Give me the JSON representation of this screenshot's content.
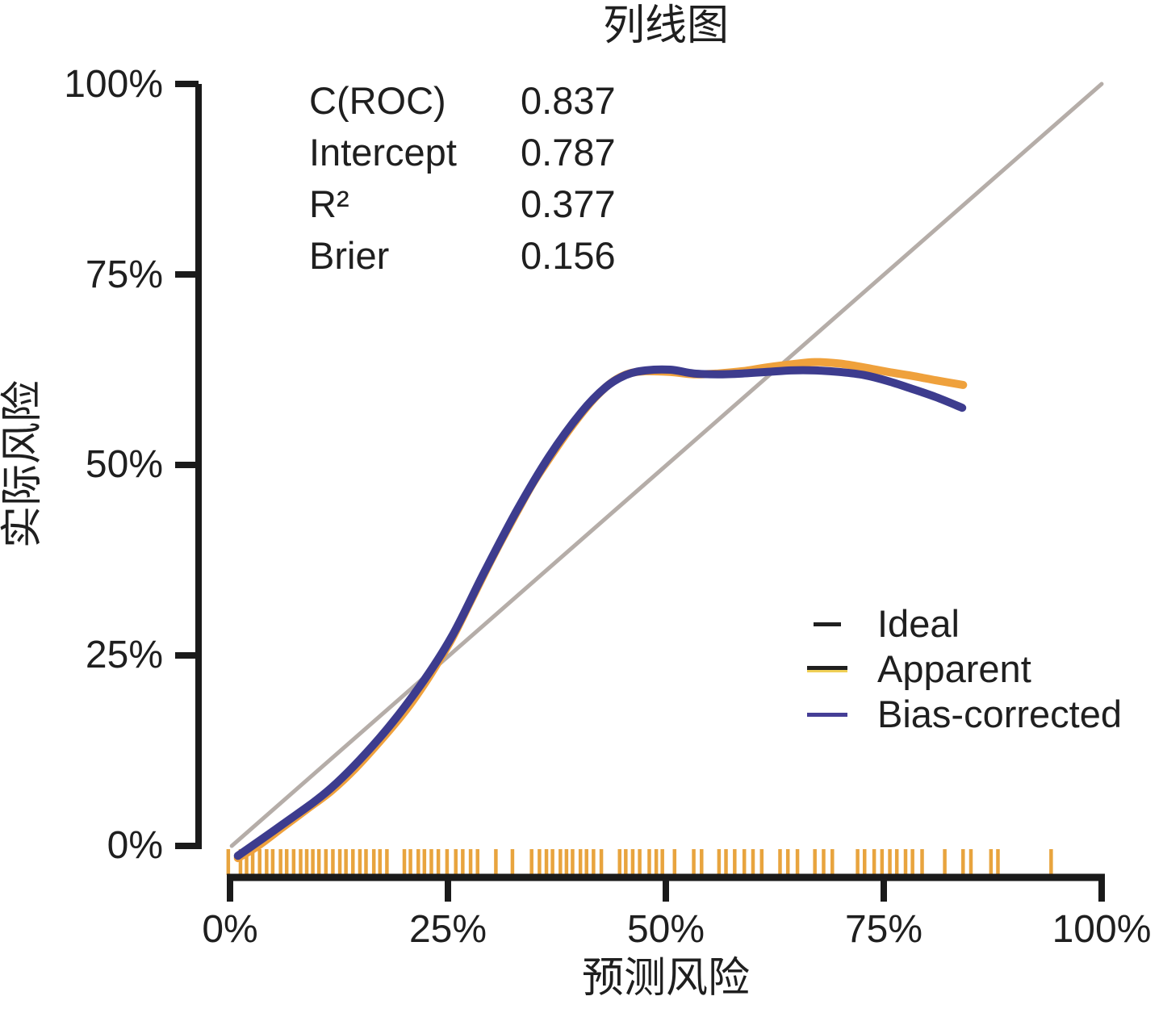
{
  "chart_data": {
    "type": "line",
    "title": "列线图",
    "xlabel": "预测风险",
    "ylabel": "实际风险",
    "xlim": [
      0,
      100
    ],
    "ylim": [
      0,
      100
    ],
    "grid": false,
    "legend_position": "bottom-right",
    "x_tick_labels": [
      "0%",
      "25%",
      "50%",
      "75%",
      "100%"
    ],
    "x_tick_values": [
      0,
      25,
      50,
      75,
      100
    ],
    "y_tick_labels": [
      "0%",
      "25%",
      "50%",
      "75%",
      "100%"
    ],
    "y_tick_values": [
      0,
      25,
      50,
      75,
      100
    ],
    "axis_color": "#1a1a1a",
    "text_color": "#1f1f1f",
    "stats": [
      {
        "label": "C(ROC)",
        "value": "0.837"
      },
      {
        "label": "Intercept",
        "value": "0.787"
      },
      {
        "label": "R²",
        "value": "0.377"
      },
      {
        "label": "Brier",
        "value": "0.156"
      }
    ],
    "series": [
      {
        "name": "Ideal",
        "color": "#b5ada8",
        "stroke_width": 5,
        "smooth": false,
        "points": [
          [
            0.2,
            0
          ],
          [
            100,
            100
          ]
        ]
      },
      {
        "name": "Apparent",
        "color": "#efa13c",
        "stroke_width": 10,
        "smooth": true,
        "points": [
          [
            0.9,
            -1.6
          ],
          [
            3.2,
            0
          ],
          [
            6,
            2.4
          ],
          [
            8.8,
            4.8
          ],
          [
            11.6,
            7.2
          ],
          [
            14.4,
            10.2
          ],
          [
            17.1,
            13.6
          ],
          [
            19.9,
            17.4
          ],
          [
            21.8,
            20.4
          ],
          [
            23.6,
            23.6
          ],
          [
            25.5,
            27.3
          ],
          [
            27.3,
            31.4
          ],
          [
            29.2,
            35.8
          ],
          [
            31,
            39.8
          ],
          [
            32.9,
            43.8
          ],
          [
            34.7,
            47.5
          ],
          [
            36.6,
            50.8
          ],
          [
            38.4,
            53.8
          ],
          [
            40.3,
            56.7
          ],
          [
            42.1,
            59.1
          ],
          [
            44,
            61
          ],
          [
            45.8,
            62
          ],
          [
            47.7,
            62.3
          ],
          [
            50.5,
            62.2
          ],
          [
            53.2,
            61.9
          ],
          [
            56,
            62
          ],
          [
            58.8,
            62.3
          ],
          [
            61.6,
            62.8
          ],
          [
            64.4,
            63.2
          ],
          [
            67.1,
            63.5
          ],
          [
            69.9,
            63.3
          ],
          [
            72.7,
            62.8
          ],
          [
            75.5,
            62.2
          ],
          [
            78.2,
            61.7
          ],
          [
            81,
            61.1
          ],
          [
            84.1,
            60.5
          ]
        ]
      },
      {
        "name": "Bias-corrected",
        "color": "#3d3c8e",
        "stroke_width": 10,
        "smooth": true,
        "points": [
          [
            0.9,
            -1.3
          ],
          [
            6,
            2.8
          ],
          [
            11.6,
            7.6
          ],
          [
            17.1,
            14.1
          ],
          [
            21.8,
            21
          ],
          [
            25.5,
            27.6
          ],
          [
            29.2,
            36
          ],
          [
            32.9,
            44
          ],
          [
            36.6,
            51.1
          ],
          [
            40.3,
            56.9
          ],
          [
            43.1,
            60.2
          ],
          [
            45.4,
            61.8
          ],
          [
            47.7,
            62.4
          ],
          [
            50.5,
            62.5
          ],
          [
            53.2,
            62
          ],
          [
            56,
            61.9
          ],
          [
            58.8,
            62
          ],
          [
            61.6,
            62.2
          ],
          [
            64.4,
            62.4
          ],
          [
            67.1,
            62.4
          ],
          [
            69.9,
            62.2
          ],
          [
            72.7,
            61.8
          ],
          [
            75.5,
            61
          ],
          [
            78.2,
            60
          ],
          [
            81,
            58.9
          ],
          [
            84,
            57.5
          ]
        ]
      }
    ],
    "legend_keys": [
      [
        "#1f1f1f"
      ],
      [
        "#1f1f1f",
        "#f0d056"
      ],
      [
        "#453e96"
      ]
    ],
    "rug": {
      "color": "#e8a43e",
      "values": [
        -0.2,
        1.2,
        1.9,
        2.6,
        3.4,
        4.2,
        4.9,
        5.8,
        6.5,
        7.3,
        8.1,
        8.8,
        9.5,
        10.2,
        11,
        11.8,
        12.6,
        13.3,
        14.1,
        14.9,
        15.6,
        16.5,
        17.2,
        18,
        20,
        20.7,
        21.6,
        22.3,
        23.1,
        23.9,
        24.9,
        25.9,
        26.7,
        27.6,
        28.4,
        30.5,
        32.4,
        34.6,
        35.5,
        36.3,
        37,
        37.9,
        38.6,
        39.3,
        40.2,
        40.9,
        41.7,
        42.6,
        44.7,
        45.4,
        46.2,
        47,
        48.1,
        48.9,
        49.6,
        51,
        53.2,
        54.1,
        56.1,
        56.9,
        57.9,
        59,
        60,
        61,
        63.1,
        64,
        65.1,
        67.1,
        68.1,
        69.1,
        72,
        72.8,
        73.9,
        74.8,
        75.7,
        76.5,
        77.5,
        78.3,
        79.4,
        82,
        84.1,
        85,
        87.3,
        88.1,
        94.2
      ]
    }
  }
}
